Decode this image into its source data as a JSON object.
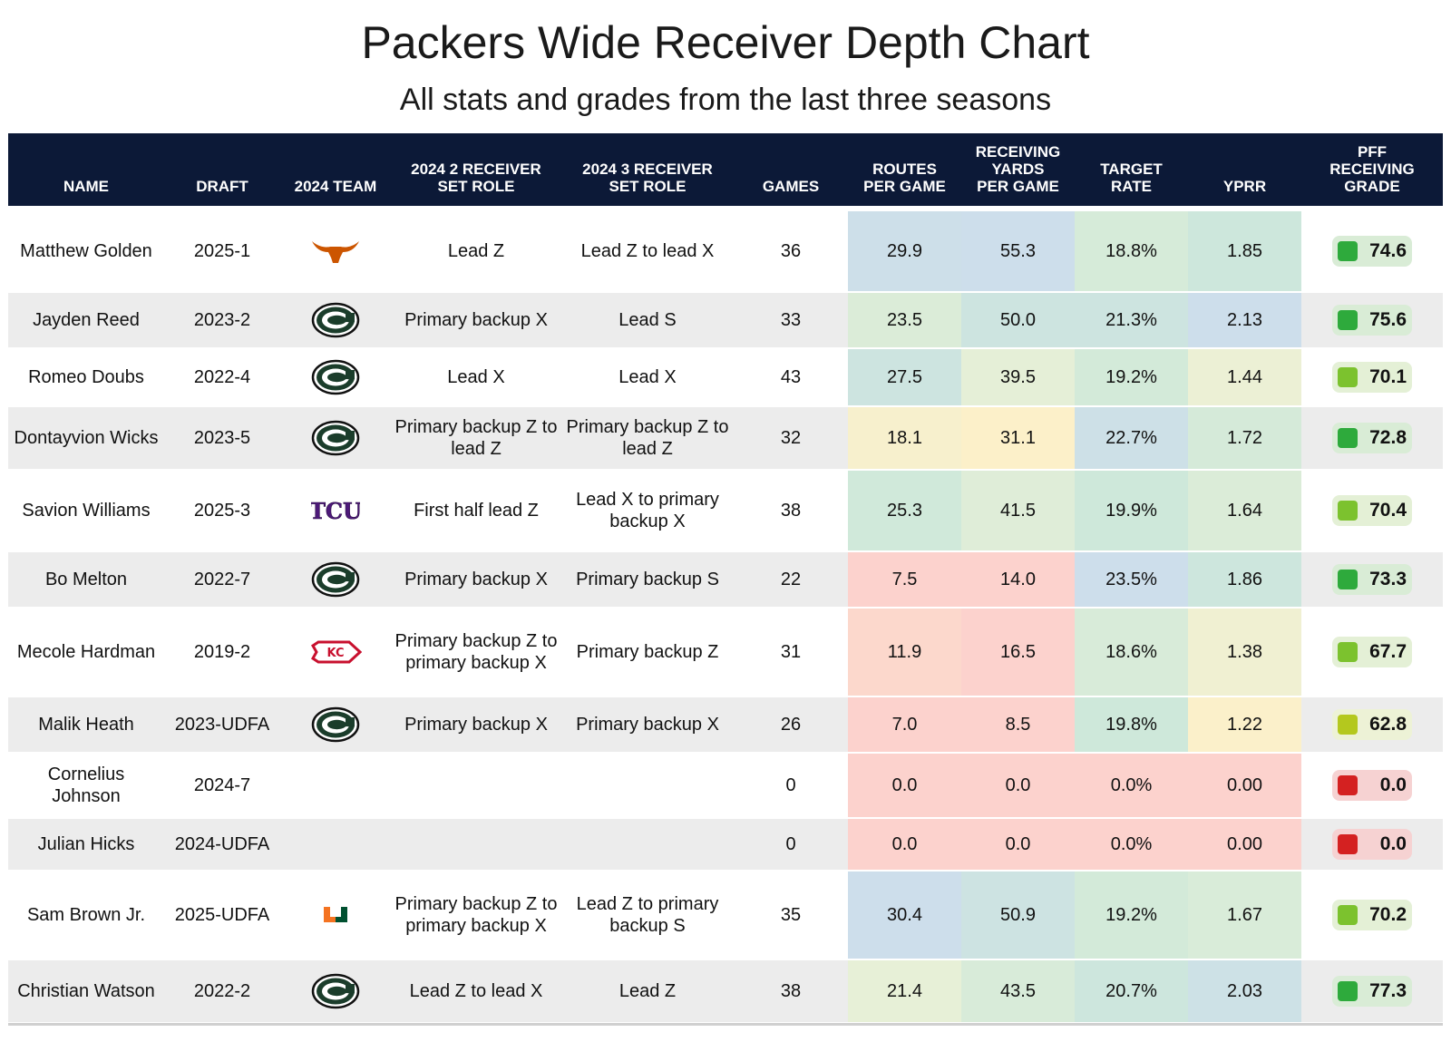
{
  "title": "Packers Wide Receiver Depth Chart",
  "subtitle": "All stats and grades from the last three seasons",
  "columns": [
    "NAME",
    "DRAFT",
    "2024 TEAM",
    "2024 2 RECEIVER SET ROLE",
    "2024 3 RECEIVER SET ROLE",
    "GAMES",
    "ROUTES PER GAME",
    "RECEIVING YARDS PER GAME",
    "TARGET RATE",
    "YPRR",
    "PFF RECEIVING GRADE"
  ],
  "colors": {
    "header_bg": "#0c1937",
    "stripe": "#ececec",
    "grade_good": "#2eaa3c",
    "grade_mid": "#7cc22e",
    "grade_low": "#b4c81e",
    "grade_bad": "#d42121"
  },
  "chart_data": {
    "type": "table",
    "rows": [
      {
        "name": "Matthew Golden",
        "draft": "2025-1",
        "team": "texas-longhorns-logo",
        "role2": "Lead Z",
        "role3": "Lead Z to lead X",
        "games": "36",
        "routes": "29.9",
        "yards": "55.3",
        "target": "18.8%",
        "yprr": "1.85",
        "grade": "74.6"
      },
      {
        "name": "Jayden Reed",
        "draft": "2023-2",
        "team": "packers-logo",
        "role2": "Primary backup X",
        "role3": "Lead S",
        "games": "33",
        "routes": "23.5",
        "yards": "50.0",
        "target": "21.3%",
        "yprr": "2.13",
        "grade": "75.6"
      },
      {
        "name": "Romeo Doubs",
        "draft": "2022-4",
        "team": "packers-logo",
        "role2": "Lead X",
        "role3": "Lead X",
        "games": "43",
        "routes": "27.5",
        "yards": "39.5",
        "target": "19.2%",
        "yprr": "1.44",
        "grade": "70.1"
      },
      {
        "name": "Dontayvion Wicks",
        "draft": "2023-5",
        "team": "packers-logo",
        "role2": "Primary backup Z to lead Z",
        "role3": "Primary backup Z to lead Z",
        "games": "32",
        "routes": "18.1",
        "yards": "31.1",
        "target": "22.7%",
        "yprr": "1.72",
        "grade": "72.8"
      },
      {
        "name": "Savion Williams",
        "draft": "2025-3",
        "team": "tcu-logo",
        "role2": "First half lead Z",
        "role3": "Lead X to primary backup X",
        "games": "38",
        "routes": "25.3",
        "yards": "41.5",
        "target": "19.9%",
        "yprr": "1.64",
        "grade": "70.4"
      },
      {
        "name": "Bo Melton",
        "draft": "2022-7",
        "team": "packers-logo",
        "role2": "Primary backup X",
        "role3": "Primary backup S",
        "games": "22",
        "routes": "7.5",
        "yards": "14.0",
        "target": "23.5%",
        "yprr": "1.86",
        "grade": "73.3"
      },
      {
        "name": "Mecole Hardman",
        "draft": "2019-2",
        "team": "chiefs-logo",
        "role2": "Primary backup Z to primary backup X",
        "role3": "Primary backup Z",
        "games": "31",
        "routes": "11.9",
        "yards": "16.5",
        "target": "18.6%",
        "yprr": "1.38",
        "grade": "67.7"
      },
      {
        "name": "Malik Heath",
        "draft": "2023-UDFA",
        "team": "packers-logo",
        "role2": "Primary backup X",
        "role3": "Primary backup X",
        "games": "26",
        "routes": "7.0",
        "yards": "8.5",
        "target": "19.8%",
        "yprr": "1.22",
        "grade": "62.8"
      },
      {
        "name": "Cornelius Johnson",
        "draft": "2024-7",
        "team": "",
        "role2": "",
        "role3": "",
        "games": "0",
        "routes": "0.0",
        "yards": "0.0",
        "target": "0.0%",
        "yprr": "0.00",
        "grade": "0.0"
      },
      {
        "name": "Julian Hicks",
        "draft": "2024-UDFA",
        "team": "",
        "role2": "",
        "role3": "",
        "games": "0",
        "routes": "0.0",
        "yards": "0.0",
        "target": "0.0%",
        "yprr": "0.00",
        "grade": "0.0"
      },
      {
        "name": "Sam Brown Jr.",
        "draft": "2025-UDFA",
        "team": "miami-hurricanes-logo",
        "role2": "Primary backup Z to primary backup X",
        "role3": "Lead Z to primary backup S",
        "games": "35",
        "routes": "30.4",
        "yards": "50.9",
        "target": "19.2%",
        "yprr": "1.67",
        "grade": "70.2"
      },
      {
        "name": "Christian Watson",
        "draft": "2022-2",
        "team": "packers-logo",
        "role2": "Lead Z to lead X",
        "role3": "Lead Z",
        "games": "38",
        "routes": "21.4",
        "yards": "43.5",
        "target": "20.7%",
        "yprr": "2.03",
        "grade": "77.3"
      }
    ]
  }
}
